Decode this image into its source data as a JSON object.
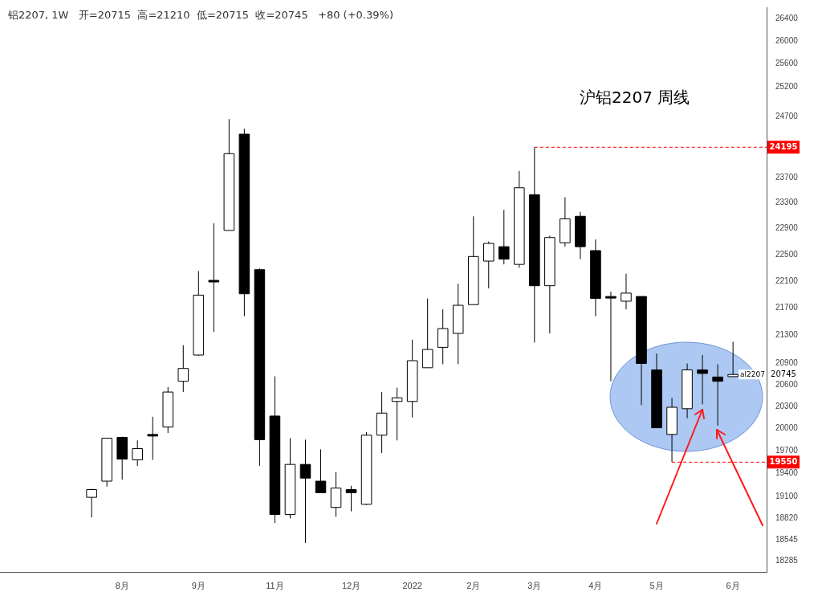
{
  "chart_data": {
    "type": "candlestick",
    "title": "沪铝2207 周线",
    "subtitle": "铝2207, 1W   开=20715  高=21210  低=20715  收=20745   +80 (+0.39%)",
    "categories": [
      null,
      null,
      "8月",
      null,
      null,
      null,
      null,
      "9月",
      null,
      null,
      null,
      null,
      "11月",
      null,
      null,
      null,
      null,
      "12月",
      null,
      null,
      null,
      "2022",
      null,
      null,
      null,
      "2月",
      null,
      null,
      null,
      "3月",
      null,
      null,
      null,
      "4月",
      null,
      null,
      null,
      "5月",
      null,
      null,
      null,
      null,
      "6月"
    ],
    "ohlc": [
      [
        19090,
        19200,
        18830,
        19190
      ],
      [
        19300,
        19870,
        19230,
        19870
      ],
      [
        19880,
        19890,
        19320,
        19590
      ],
      [
        19580,
        19840,
        19500,
        19730
      ],
      [
        19920,
        20160,
        19580,
        19900
      ],
      [
        20020,
        20570,
        19940,
        20500
      ],
      [
        20650,
        21160,
        20500,
        20830
      ],
      [
        21020,
        22250,
        21010,
        21890
      ],
      [
        22110,
        22980,
        21350,
        22090
      ],
      [
        22870,
        24660,
        22870,
        24090
      ],
      [
        24410,
        24500,
        21580,
        21910
      ],
      [
        22270,
        22290,
        19500,
        19850
      ],
      [
        20170,
        20720,
        18760,
        18870
      ],
      [
        18870,
        19870,
        18820,
        19520
      ],
      [
        19520,
        19850,
        18510,
        19340
      ],
      [
        19300,
        19720,
        19150,
        19150
      ],
      [
        18960,
        19420,
        18840,
        19210
      ],
      [
        19190,
        19240,
        18910,
        19150
      ],
      [
        19000,
        19950,
        18990,
        19910
      ],
      [
        19910,
        20500,
        19670,
        20210
      ],
      [
        20370,
        20560,
        19840,
        20420
      ],
      [
        20370,
        21240,
        20150,
        20940
      ],
      [
        20840,
        21840,
        20840,
        21100
      ],
      [
        21130,
        21680,
        20890,
        21400
      ],
      [
        21330,
        22060,
        20890,
        21740
      ],
      [
        21750,
        23090,
        21750,
        22470
      ],
      [
        22400,
        22700,
        21990,
        22670
      ],
      [
        22620,
        23190,
        22350,
        22430
      ],
      [
        22350,
        23810,
        22300,
        23540
      ],
      [
        23430,
        24195,
        21200,
        22030
      ],
      [
        22030,
        22790,
        21330,
        22760
      ],
      [
        22680,
        23390,
        22620,
        23050
      ],
      [
        23090,
        23160,
        22430,
        22620
      ],
      [
        22560,
        22730,
        21580,
        21840
      ],
      [
        21870,
        21940,
        20650,
        21850
      ],
      [
        21800,
        22210,
        21680,
        21920
      ],
      [
        21870,
        21870,
        20320,
        20900
      ],
      [
        20810,
        21040,
        20010,
        20010
      ],
      [
        19920,
        20420,
        19550,
        20290
      ],
      [
        20270,
        20900,
        20140,
        20810
      ],
      [
        20810,
        21020,
        20330,
        20760
      ],
      [
        20710,
        20890,
        20040,
        20650
      ],
      [
        20715,
        21210,
        20715,
        20745
      ]
    ],
    "colors": [
      "#ffffff",
      "#ffffff",
      "#000000",
      "#ffffff",
      "#000000",
      "#ffffff",
      "#ffffff",
      "#ffffff",
      "#000000",
      "#ffffff",
      "#000000",
      "#000000",
      "#000000",
      "#ffffff",
      "#000000",
      "#000000",
      "#ffffff",
      "#000000",
      "#ffffff",
      "#ffffff",
      "#ffffff",
      "#ffffff",
      "#ffffff",
      "#ffffff",
      "#ffffff",
      "#ffffff",
      "#ffffff",
      "#000000",
      "#ffffff",
      "#000000",
      "#ffffff",
      "#ffffff",
      "#000000",
      "#000000",
      "#000000",
      "#ffffff",
      "#000000",
      "#000000",
      "#ffffff",
      "#ffffff",
      "#000000",
      "#000000",
      "#ffffff"
    ],
    "log": "y",
    "ylim": [
      18150,
      26600
    ],
    "yticks": [
      18285,
      18545,
      18820,
      19100,
      19400,
      19700,
      20000,
      20300,
      20600,
      20900,
      21300,
      21700,
      22100,
      22500,
      22900,
      23300,
      23700,
      24700,
      25200,
      25600,
      26000,
      26400
    ],
    "ref_lines": [
      {
        "axis": "y",
        "value": 24195,
        "label": "24195",
        "color": "#ff0000",
        "line_style": "dashed"
      },
      {
        "axis": "y",
        "value": 19550,
        "label": "19550",
        "color": "#ff0000",
        "line_style": "dashed"
      }
    ],
    "annotations": [
      "20745",
      {
        "text": "al2207",
        "y": 20745
      }
    ]
  }
}
